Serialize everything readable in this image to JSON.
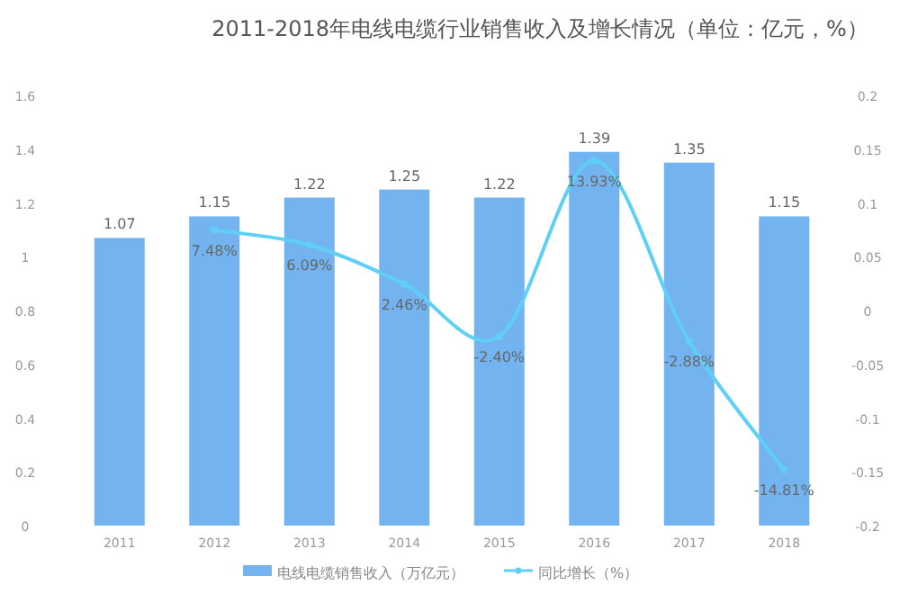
{
  "chart_data": {
    "type": "bar",
    "title": "2011-2018年电线电缆行业销售收入及增长情况（单位：亿元，%）",
    "categories": [
      "2011",
      "2012",
      "2013",
      "2014",
      "2015",
      "2016",
      "2017",
      "2018"
    ],
    "series": [
      {
        "name": "电线电缆销售收入（万亿元）",
        "color": "#72b3f0",
        "values": [
          1.07,
          1.15,
          1.22,
          1.25,
          1.22,
          1.39,
          1.35,
          1.15
        ],
        "value_labels": [
          "1.07",
          "1.15",
          "1.22",
          "1.25",
          "1.22",
          "1.39",
          "1.35",
          "1.15"
        ]
      },
      {
        "name": "同比增长（%）",
        "type": "line",
        "axis": "y2",
        "color": "#5fd0f5",
        "marker": "circle",
        "values": [
          null,
          0.0748,
          0.0609,
          0.0246,
          -0.024,
          0.1393,
          -0.0288,
          -0.1481
        ],
        "value_labels": [
          null,
          "7.48%",
          "6.09%",
          "2.46%",
          "-2.40%",
          "13.93%",
          "-2.88%",
          "-14.81%"
        ]
      }
    ],
    "ylim": [
      0,
      1.6
    ],
    "yticks": [
      0,
      0.2,
      0.4,
      0.6,
      0.8,
      1,
      1.2,
      1.4,
      1.6
    ],
    "y2lim": [
      -0.2,
      0.2
    ],
    "y2ticks": [
      -0.2,
      -0.15,
      -0.1,
      -0.05,
      0,
      0.05,
      0.1,
      0.15,
      0.2
    ],
    "legend": "bottom",
    "grid": false
  }
}
